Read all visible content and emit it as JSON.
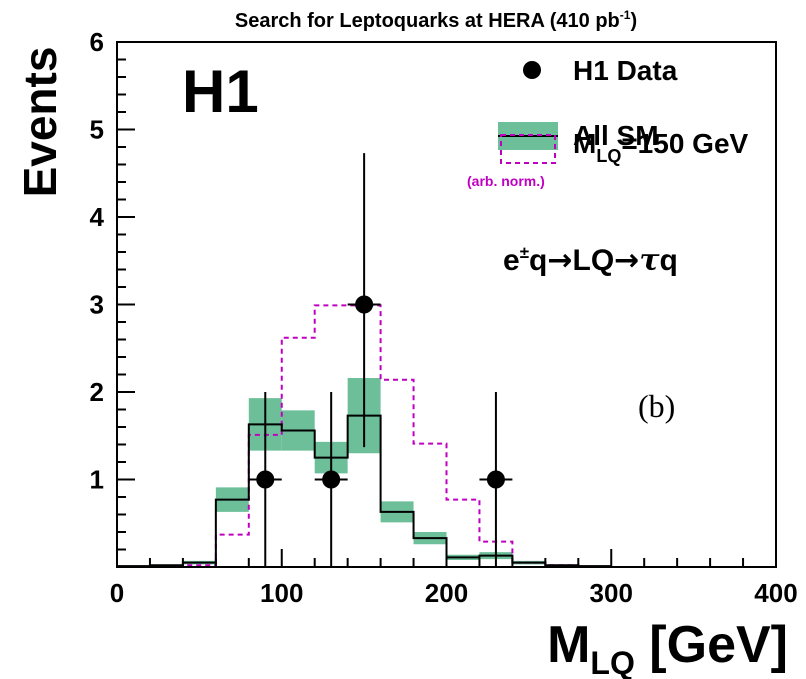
{
  "chart_data": {
    "type": "histogram",
    "title_main": "Search for Leptoquarks at HERA (410 pb",
    "title_sup": "-1",
    "title_end": ")",
    "experiment_label": "H1",
    "panel_label": "(b)",
    "process_label": {
      "e": "e",
      "pm": "±",
      "q1": "q",
      "arrow1": "→",
      "lq": "LQ",
      "arrow2": "→",
      "tau": "τ",
      "q2": "q"
    },
    "xlabel_main": "M",
    "xlabel_sub": "LQ",
    "xlabel_unit": " [GeV]",
    "ylabel": "Events",
    "xlim": [
      0,
      400
    ],
    "ylim": [
      0,
      6
    ],
    "xticks": [
      {
        "v": 0,
        "label": "0"
      },
      {
        "v": 100,
        "label": "100"
      },
      {
        "v": 200,
        "label": "200"
      },
      {
        "v": 300,
        "label": "300"
      },
      {
        "v": 400,
        "label": "400"
      }
    ],
    "yticks": [
      {
        "v": 1,
        "label": "1"
      },
      {
        "v": 2,
        "label": "2"
      },
      {
        "v": 3,
        "label": "3"
      },
      {
        "v": 4,
        "label": "4"
      },
      {
        "v": 5,
        "label": "5"
      },
      {
        "v": 6,
        "label": "6"
      }
    ],
    "bin_edges": [
      0,
      20,
      40,
      60,
      80,
      100,
      120,
      140,
      160,
      180,
      200,
      220,
      240,
      260,
      280,
      300
    ],
    "series": [
      {
        "name": "All SM",
        "type": "step_band",
        "color": "#000000",
        "band_color": "#6dbf9a",
        "values": [
          0.01,
          0.02,
          0.05,
          0.77,
          1.63,
          1.56,
          1.25,
          1.73,
          0.63,
          0.33,
          0.11,
          0.13,
          0.05,
          0.02,
          0.01
        ],
        "err": [
          0.01,
          0.01,
          0.02,
          0.14,
          0.3,
          0.23,
          0.18,
          0.43,
          0.12,
          0.07,
          0.03,
          0.04,
          0.02,
          0.01,
          0.01
        ]
      },
      {
        "name": "M",
        "name_sub": "LQ",
        "name_end": "=150 GeV",
        "note": "(arb. norm.)",
        "type": "step_dashed",
        "color": "#c000c0",
        "values": [
          0,
          0,
          0.02,
          0.37,
          1.51,
          2.62,
          2.99,
          2.99,
          2.14,
          1.41,
          0.77,
          0.29,
          0.05,
          0.02,
          0
        ]
      },
      {
        "name": "H1 Data",
        "type": "points",
        "color": "#000000",
        "points": [
          {
            "x": 90,
            "y": 1,
            "xerr": 10,
            "ylo": 0,
            "yhi": 2
          },
          {
            "x": 130,
            "y": 1,
            "xerr": 10,
            "ylo": 0,
            "yhi": 2
          },
          {
            "x": 150,
            "y": 3,
            "xerr": 10,
            "ylo": 1.37,
            "yhi": 4.73
          },
          {
            "x": 230,
            "y": 1,
            "xerr": 10,
            "ylo": 0,
            "yhi": 2
          }
        ]
      }
    ],
    "legend_position": "top-right"
  }
}
